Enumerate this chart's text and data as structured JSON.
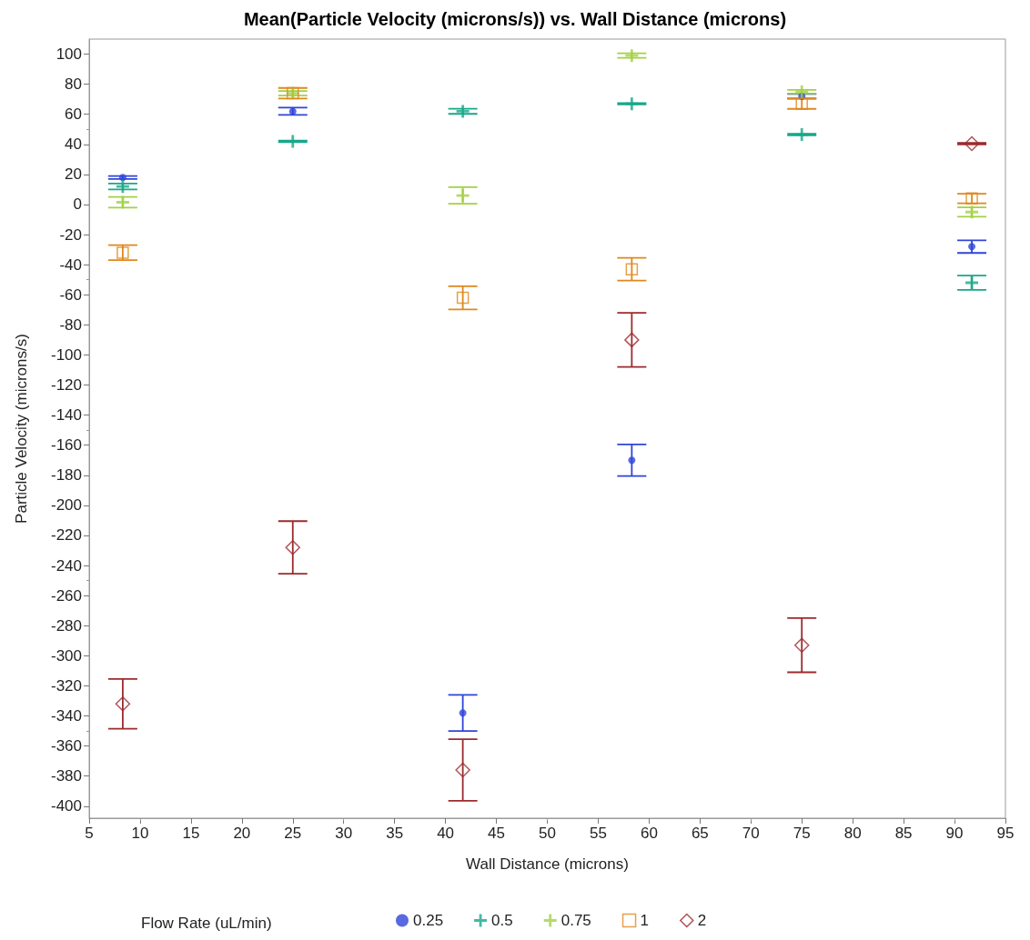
{
  "chart_data": {
    "type": "scatter",
    "title": "Mean(Particle Velocity (microns/s)) vs. Wall Distance (microns)",
    "xlabel": "Wall Distance (microns)",
    "ylabel": "Particle Velocity (microns/s)",
    "legend_title": "Flow Rate (uL/min)",
    "legend": "bottom",
    "grid": false,
    "x": [
      8.3,
      25,
      41.7,
      58.3,
      75,
      91.7
    ],
    "xlim": [
      5,
      95
    ],
    "xticks": [
      5,
      10,
      15,
      20,
      25,
      30,
      35,
      40,
      45,
      50,
      55,
      60,
      65,
      70,
      75,
      80,
      85,
      90,
      95
    ],
    "ylim": [
      -408,
      110
    ],
    "yticks": [
      -400,
      -380,
      -360,
      -340,
      -320,
      -300,
      -280,
      -260,
      -240,
      -220,
      -200,
      -180,
      -160,
      -140,
      -120,
      -100,
      -80,
      -60,
      -40,
      -20,
      0,
      20,
      40,
      60,
      80,
      100
    ],
    "series": [
      {
        "name": "0.25",
        "color": "#2f45d8",
        "marker": "circle",
        "values": [
          18,
          62,
          -338,
          -170,
          72,
          -28
        ],
        "errors": [
          1,
          2.4,
          12,
          10.5,
          1.5,
          4.2
        ]
      },
      {
        "name": "0.5",
        "color": "#16a889",
        "marker": "cross",
        "values": [
          12,
          42,
          62,
          67,
          46.5,
          -52
        ],
        "errors": [
          2,
          0.5,
          1.7,
          0.5,
          0.5,
          4.8
        ]
      },
      {
        "name": "0.75",
        "color": "#a3d143",
        "marker": "cross",
        "values": [
          1.5,
          74,
          6,
          99,
          75,
          -5
        ],
        "errors": [
          3.5,
          1.5,
          5.5,
          1.5,
          1.2,
          3.1
        ]
      },
      {
        "name": "1",
        "color": "#e0881c",
        "marker": "square",
        "values": [
          -32,
          74,
          -62,
          -43,
          67,
          4
        ],
        "errors": [
          5,
          3.5,
          7.7,
          7.5,
          3.4,
          3.2
        ]
      },
      {
        "name": "2",
        "color": "#9c2b2e",
        "marker": "diamond",
        "values": [
          -332,
          -228,
          -376,
          -90,
          -293,
          40.5
        ],
        "errors": [
          16.5,
          17.5,
          20.5,
          18,
          18,
          0.5
        ]
      }
    ]
  }
}
